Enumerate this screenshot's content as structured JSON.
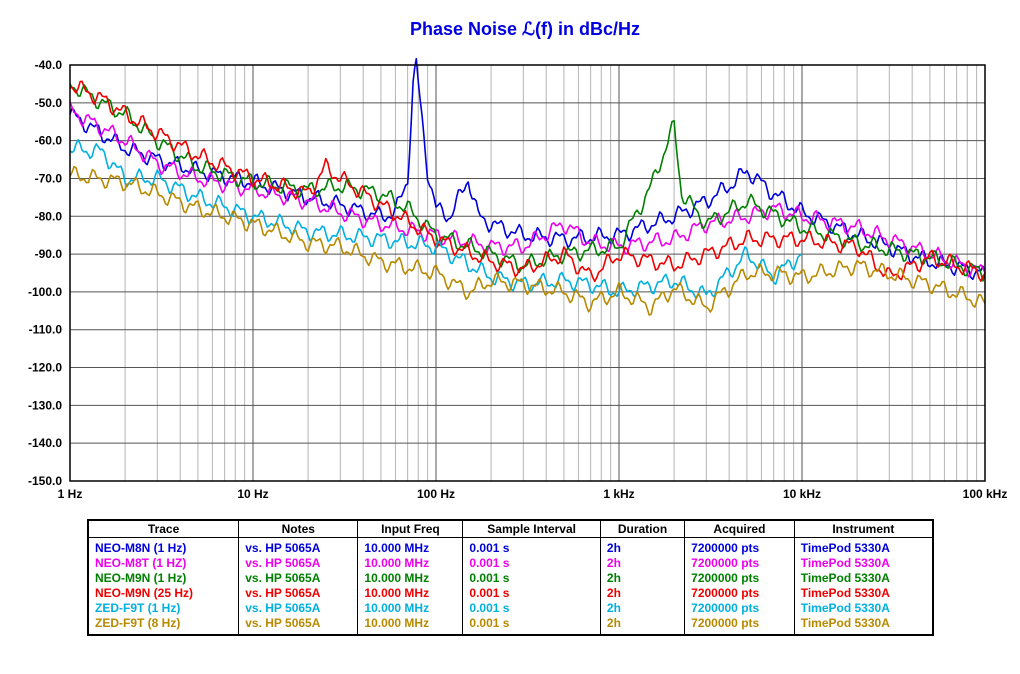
{
  "chart_data": {
    "type": "line",
    "title": "Phase Noise ℒ(f) in dBc/Hz",
    "title_color": "#0000e0",
    "xscale": "log",
    "xlim": [
      1,
      100000
    ],
    "ylim": [
      -150,
      -40
    ],
    "grid": true,
    "x_tick_labels": [
      "1 Hz",
      "10 Hz",
      "100 Hz",
      "1 kHz",
      "10 kHz",
      "100 kHz"
    ],
    "y_tick_labels": [
      "-40.0",
      "-50.0",
      "-60.0",
      "-70.0",
      "-80.0",
      "-90.0",
      "-100.0",
      "-110.0",
      "-120.0",
      "-130.0",
      "-140.0",
      "-150.0"
    ],
    "series": [
      {
        "name": "NEO-M8N (1 Hz)",
        "color": "#0000dd",
        "points": [
          [
            1,
            -53
          ],
          [
            2,
            -62
          ],
          [
            3,
            -65
          ],
          [
            5,
            -68
          ],
          [
            10,
            -71
          ],
          [
            20,
            -75
          ],
          [
            30,
            -77
          ],
          [
            50,
            -80
          ],
          [
            60,
            -79
          ],
          [
            70,
            -70
          ],
          [
            75,
            -45
          ],
          [
            78,
            -40
          ],
          [
            82,
            -50
          ],
          [
            90,
            -68
          ],
          [
            100,
            -78
          ],
          [
            120,
            -80
          ],
          [
            150,
            -70
          ],
          [
            170,
            -80
          ],
          [
            200,
            -82
          ],
          [
            300,
            -85
          ],
          [
            500,
            -86
          ],
          [
            1000,
            -85
          ],
          [
            2000,
            -80
          ],
          [
            3000,
            -76
          ],
          [
            4000,
            -72
          ],
          [
            5000,
            -68
          ],
          [
            7000,
            -74
          ],
          [
            10000,
            -79
          ],
          [
            20000,
            -85
          ],
          [
            50000,
            -92
          ],
          [
            100000,
            -95
          ]
        ]
      },
      {
        "name": "NEO-M8T (1 HZ)",
        "color": "#ee00ee",
        "points": [
          [
            1,
            -52
          ],
          [
            2,
            -60
          ],
          [
            3,
            -66
          ],
          [
            5,
            -70
          ],
          [
            10,
            -73
          ],
          [
            20,
            -76
          ],
          [
            30,
            -79
          ],
          [
            50,
            -82
          ],
          [
            100,
            -85
          ],
          [
            200,
            -88
          ],
          [
            300,
            -88
          ],
          [
            500,
            -82
          ],
          [
            700,
            -87
          ],
          [
            1000,
            -88
          ],
          [
            2000,
            -86
          ],
          [
            3000,
            -82
          ],
          [
            5000,
            -80
          ],
          [
            7000,
            -78
          ],
          [
            10000,
            -80
          ],
          [
            20000,
            -83
          ],
          [
            50000,
            -90
          ],
          [
            100000,
            -95
          ]
        ]
      },
      {
        "name": "NEO-M9N (1 Hz)",
        "color": "#008000",
        "points": [
          [
            1,
            -45
          ],
          [
            1.5,
            -50
          ],
          [
            2,
            -53
          ],
          [
            3,
            -60
          ],
          [
            5,
            -67
          ],
          [
            10,
            -71
          ],
          [
            20,
            -73
          ],
          [
            30,
            -72
          ],
          [
            50,
            -74
          ],
          [
            70,
            -78
          ],
          [
            100,
            -85
          ],
          [
            200,
            -90
          ],
          [
            300,
            -93
          ],
          [
            500,
            -90
          ],
          [
            1000,
            -88
          ],
          [
            1500,
            -72
          ],
          [
            2000,
            -56
          ],
          [
            2200,
            -74
          ],
          [
            3000,
            -82
          ],
          [
            5000,
            -76
          ],
          [
            10000,
            -83
          ],
          [
            20000,
            -87
          ],
          [
            50000,
            -91
          ],
          [
            100000,
            -95
          ]
        ]
      },
      {
        "name": "NEO-M9N (25 Hz)",
        "color": "#ee0000",
        "points": [
          [
            1,
            -45
          ],
          [
            1.5,
            -49
          ],
          [
            2,
            -53
          ],
          [
            3,
            -58
          ],
          [
            5,
            -64
          ],
          [
            10,
            -70
          ],
          [
            20,
            -74
          ],
          [
            25,
            -67
          ],
          [
            30,
            -70
          ],
          [
            50,
            -77
          ],
          [
            100,
            -86
          ],
          [
            200,
            -92
          ],
          [
            300,
            -94
          ],
          [
            500,
            -90
          ],
          [
            700,
            -96
          ],
          [
            1000,
            -90
          ],
          [
            2000,
            -93
          ],
          [
            3000,
            -90
          ],
          [
            5000,
            -86
          ],
          [
            10000,
            -86
          ],
          [
            20000,
            -88
          ],
          [
            30000,
            -96
          ],
          [
            50000,
            -91
          ],
          [
            100000,
            -95
          ]
        ]
      },
      {
        "name": "ZED-F9T (1 Hz)",
        "color": "#00b0e0",
        "points": [
          [
            1,
            -62
          ],
          [
            1.5,
            -63
          ],
          [
            2,
            -70
          ],
          [
            3,
            -70
          ],
          [
            5,
            -75
          ],
          [
            10,
            -80
          ],
          [
            20,
            -84
          ],
          [
            50,
            -86
          ],
          [
            100,
            -88
          ],
          [
            200,
            -96
          ],
          [
            300,
            -98
          ],
          [
            500,
            -97
          ],
          [
            700,
            -98
          ],
          [
            1000,
            -100
          ],
          [
            2000,
            -97
          ],
          [
            3000,
            -101
          ],
          [
            5000,
            -90
          ],
          [
            7000,
            -96
          ],
          [
            10000,
            -90
          ]
        ]
      },
      {
        "name": "ZED-F9T (8 Hz)",
        "color": "#b88a00",
        "points": [
          [
            1,
            -69
          ],
          [
            2,
            -71
          ],
          [
            3,
            -74
          ],
          [
            5,
            -78
          ],
          [
            10,
            -82
          ],
          [
            20,
            -87
          ],
          [
            30,
            -88
          ],
          [
            50,
            -92
          ],
          [
            100,
            -95
          ],
          [
            150,
            -100
          ],
          [
            200,
            -97
          ],
          [
            300,
            -98
          ],
          [
            500,
            -100
          ],
          [
            700,
            -103
          ],
          [
            1000,
            -100
          ],
          [
            1500,
            -104
          ],
          [
            2000,
            -99
          ],
          [
            3000,
            -104
          ],
          [
            5000,
            -95
          ],
          [
            7000,
            -95
          ],
          [
            10000,
            -96
          ],
          [
            20000,
            -93
          ],
          [
            50000,
            -98
          ],
          [
            100000,
            -103
          ]
        ]
      }
    ]
  },
  "table": {
    "headers": [
      "Trace",
      "Notes",
      "Input Freq",
      "Sample Interval",
      "Duration",
      "Acquired",
      "Instrument"
    ],
    "rows": [
      {
        "color": "#0000dd",
        "cells": [
          "NEO-M8N (1 Hz)",
          "vs. HP 5065A",
          "10.000 MHz",
          "0.001 s",
          "2h",
          "7200000 pts",
          "TimePod 5330A"
        ]
      },
      {
        "color": "#ee00ee",
        "cells": [
          "NEO-M8T (1 HZ)",
          "vs. HP 5065A",
          "10.000 MHz",
          "0.001 s",
          "2h",
          "7200000 pts",
          "TimePod 5330A"
        ]
      },
      {
        "color": "#008000",
        "cells": [
          "NEO-M9N (1 Hz)",
          "vs. HP 5065A",
          "10.000 MHz",
          "0.001 s",
          "2h",
          "7200000 pts",
          "TimePod 5330A"
        ]
      },
      {
        "color": "#ee0000",
        "cells": [
          "NEO-M9N (25 Hz)",
          "vs. HP 5065A",
          "10.000 MHz",
          "0.001 s",
          "2h",
          "7200000 pts",
          "TimePod 5330A"
        ]
      },
      {
        "color": "#00b0e0",
        "cells": [
          "ZED-F9T (1 Hz)",
          "vs. HP 5065A",
          "10.000 MHz",
          "0.001 s",
          "2h",
          "7200000 pts",
          "TimePod 5330A"
        ]
      },
      {
        "color": "#b88a00",
        "cells": [
          "ZED-F9T (8 Hz)",
          "vs. HP 5065A",
          "10.000 MHz",
          "0.001 s",
          "2h",
          "7200000 pts",
          "TimePod 5330A"
        ]
      }
    ]
  }
}
